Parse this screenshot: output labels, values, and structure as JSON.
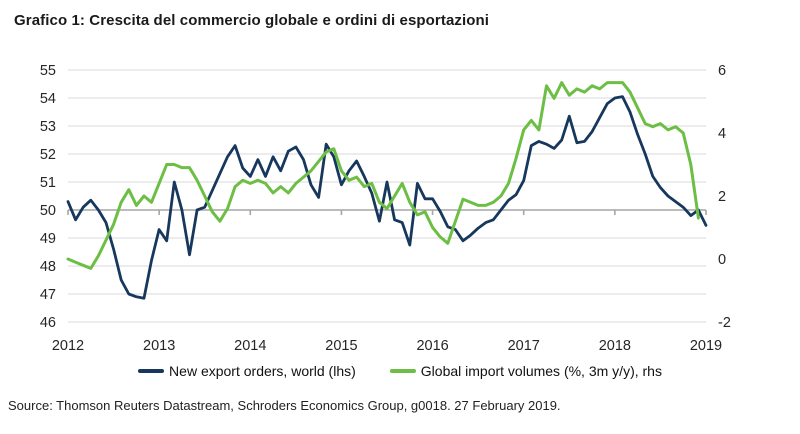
{
  "header": {
    "title": "Grafico 1: Crescita del commercio globale e ordini di esportazioni"
  },
  "chart_data": {
    "type": "line",
    "title": "Grafico 1: Crescita del commercio globale e ordini di esportazioni",
    "x_labels": [
      "2012",
      "2013",
      "2014",
      "2015",
      "2016",
      "2017",
      "2018",
      "2019"
    ],
    "x_start": "2012-01",
    "x_freq": "monthly",
    "lhs_axis": {
      "min": 46,
      "max": 55,
      "ticks": [
        "55",
        "54",
        "53",
        "52",
        "51",
        "50",
        "49",
        "48",
        "47",
        "46"
      ]
    },
    "rhs_axis": {
      "min": -2,
      "max": 6,
      "ticks": [
        "6",
        "4",
        "2",
        "0",
        "-2"
      ]
    },
    "baseline_lhs_value": 50,
    "grid": true,
    "legend_position": "bottom",
    "series": [
      {
        "name": "New export orders, world (lhs)",
        "axis": "lhs",
        "color": "#17375d",
        "width": 2.8,
        "values": [
          50.3,
          49.65,
          50.1,
          50.35,
          50.0,
          49.55,
          48.6,
          47.5,
          47.0,
          46.9,
          46.85,
          48.2,
          49.3,
          48.9,
          51.0,
          50.0,
          48.4,
          50.0,
          50.1,
          50.7,
          51.3,
          51.9,
          52.3,
          51.5,
          51.2,
          51.8,
          51.2,
          51.9,
          51.4,
          52.1,
          52.25,
          51.8,
          50.9,
          50.45,
          52.35,
          51.9,
          50.9,
          51.4,
          51.75,
          51.2,
          50.6,
          49.6,
          51.0,
          49.65,
          49.55,
          48.75,
          50.95,
          50.4,
          50.4,
          49.95,
          49.4,
          49.3,
          48.9,
          49.1,
          49.35,
          49.55,
          49.65,
          50.0,
          50.35,
          50.55,
          51.05,
          52.3,
          52.45,
          52.35,
          52.2,
          52.5,
          53.35,
          52.4,
          52.45,
          52.8,
          53.3,
          53.8,
          54.0,
          54.05,
          53.5,
          52.7,
          52.0,
          51.2,
          50.8,
          50.5,
          50.3,
          50.1,
          49.8,
          50.0,
          49.45
        ]
      },
      {
        "name": "Global import volumes (%, 3m y/y), rhs",
        "axis": "rhs",
        "color": "#6dbe45",
        "width": 3,
        "values": [
          0.0,
          -0.1,
          -0.2,
          -0.3,
          0.1,
          0.6,
          1.1,
          1.8,
          2.2,
          1.7,
          2.0,
          1.8,
          2.4,
          3.0,
          3.0,
          2.9,
          2.9,
          2.5,
          2.0,
          1.5,
          1.2,
          1.6,
          2.3,
          2.5,
          2.4,
          2.5,
          2.4,
          2.1,
          2.3,
          2.1,
          2.4,
          2.6,
          2.8,
          3.1,
          3.4,
          3.5,
          2.8,
          2.5,
          2.6,
          2.3,
          2.4,
          1.8,
          1.6,
          2.0,
          2.4,
          1.8,
          1.4,
          1.5,
          1.0,
          0.7,
          0.5,
          1.2,
          1.9,
          1.8,
          1.7,
          1.7,
          1.8,
          2.0,
          2.4,
          3.2,
          4.1,
          4.4,
          4.1,
          5.5,
          5.1,
          5.6,
          5.2,
          5.4,
          5.3,
          5.5,
          5.4,
          5.6,
          5.6,
          5.6,
          5.3,
          4.8,
          4.3,
          4.2,
          4.3,
          4.1,
          4.2,
          4.0,
          3.0,
          1.3
        ]
      }
    ],
    "colors": {
      "grid": "#d9d9d9",
      "baseline": "#a6a6a6",
      "text": "#262626"
    }
  },
  "legend": {
    "items": [
      {
        "label": "New export orders, world (lhs)",
        "color": "#17375d"
      },
      {
        "label": "Global import volumes (%, 3m y/y), rhs",
        "color": "#6dbe45"
      }
    ]
  },
  "source": {
    "text": "Source: Thomson Reuters Datastream, Schroders Economics Group, g0018. 27 February 2019."
  }
}
